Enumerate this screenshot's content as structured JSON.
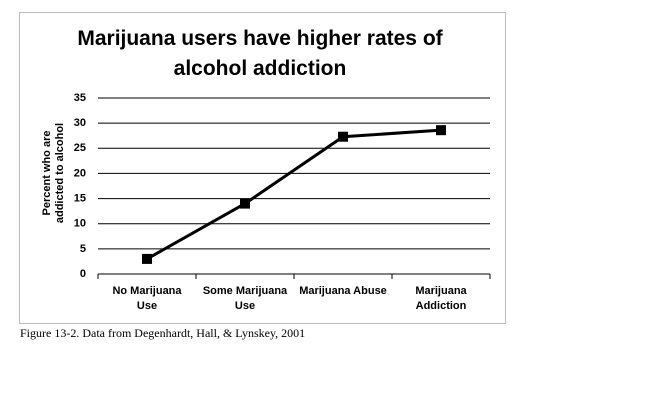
{
  "chart_data": {
    "type": "line",
    "title": "Marijuana users have higher rates of alcohol addiction",
    "y_label": "Percent who are addicted to alcohol",
    "categories": [
      "No Marijuana Use",
      "Some Marijuana Use",
      "Marijuana Abuse",
      "Marijuana Addiction"
    ],
    "values": [
      3,
      14,
      27.3,
      28.6
    ],
    "color": "#000000",
    "ylim": [
      0,
      35
    ],
    "yticks": [
      0,
      5,
      10,
      15,
      20,
      25,
      30,
      35
    ],
    "grid": true
  },
  "caption": "Figure 13-2. Data from Degenhardt, Hall, & Lynskey, 2001"
}
